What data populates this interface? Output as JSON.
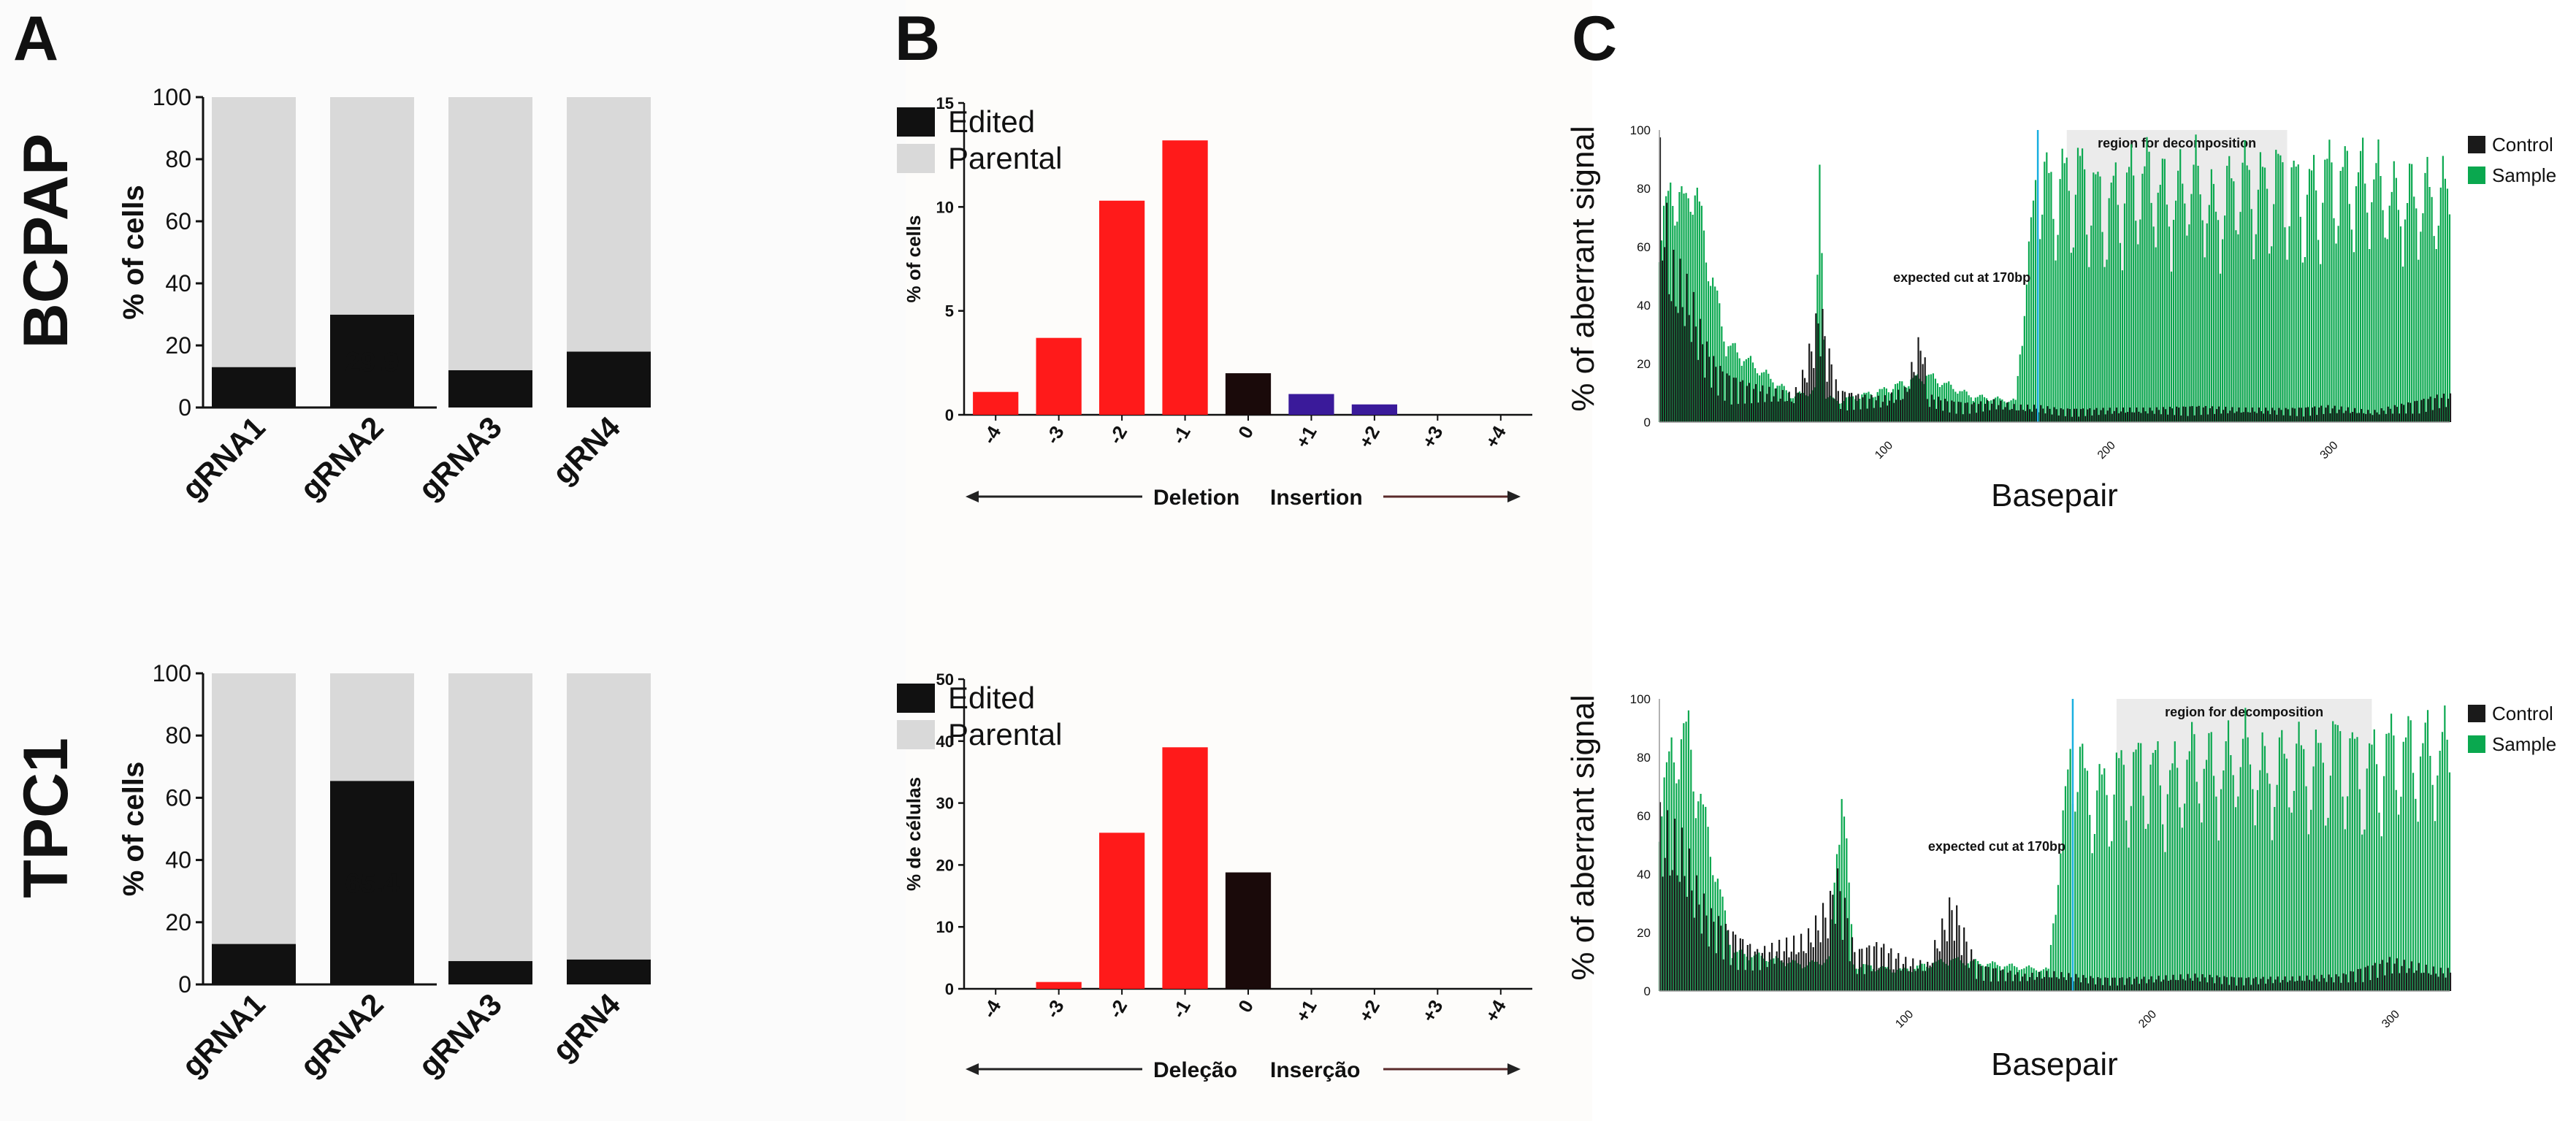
{
  "figure": {
    "panel_letters": [
      "A",
      "B",
      "C"
    ],
    "cell_lines": [
      "BCPAP",
      "TPC1"
    ]
  },
  "colors": {
    "edited": "#111111",
    "parental": "#d9d9d9",
    "deletion": "#ff1a1a",
    "zero": "#1a0a0a",
    "insertion": "#3a1a9a",
    "control": "#1a1a1a",
    "sample": "#0aa84f",
    "cut_line": "#1ab0e0",
    "region": "#ebebeb"
  },
  "chart_data": [
    {
      "id": "A_BCPAP",
      "type": "bar",
      "stacked": true,
      "ylabel": "% of cells",
      "ylim": [
        0,
        100
      ],
      "yticks": [
        0,
        20,
        40,
        60,
        80,
        100
      ],
      "categories": [
        "gRNA1",
        "gRNA2",
        "gRNA3",
        "gRN4"
      ],
      "series": [
        {
          "name": "Edited",
          "values": [
            13,
            29.9,
            12,
            18
          ]
        },
        {
          "name": "Parental",
          "values": [
            87,
            70.1,
            88,
            82
          ]
        }
      ],
      "data_labels": [
        {
          "category": "gRNA2",
          "text": "29.9"
        }
      ],
      "legend": [
        "Edited",
        "Parental"
      ],
      "legend_position": "right"
    },
    {
      "id": "A_TPC1",
      "type": "bar",
      "stacked": true,
      "ylabel": "% of cells",
      "ylim": [
        0,
        100
      ],
      "yticks": [
        0,
        20,
        40,
        60,
        80,
        100
      ],
      "categories": [
        "gRNA1",
        "gRNA2",
        "gRNA3",
        "gRN4"
      ],
      "series": [
        {
          "name": "Edited",
          "values": [
            13,
            65.4,
            7.5,
            8
          ]
        },
        {
          "name": "Parental",
          "values": [
            87,
            34.6,
            92.5,
            92
          ]
        }
      ],
      "data_labels": [
        {
          "category": "gRNA2",
          "text": "65.4"
        }
      ],
      "legend": [
        "Edited",
        "Parental"
      ],
      "legend_position": "right"
    },
    {
      "id": "B_BCPAP",
      "type": "bar",
      "ylabel": "% of cells",
      "ylim": [
        0,
        15
      ],
      "yticks": [
        0,
        5,
        10,
        15
      ],
      "categories": [
        "-4",
        "-3",
        "-2",
        "-1",
        "0",
        "+1",
        "+2",
        "+3",
        "+4"
      ],
      "values": [
        1.1,
        3.7,
        10.3,
        13.2,
        2.0,
        1.0,
        0.5,
        0,
        0
      ],
      "annotation": {
        "left": "Deletion",
        "right": "Insertion"
      }
    },
    {
      "id": "B_TPC1",
      "type": "bar",
      "ylabel": "% de células",
      "ylim": [
        0,
        50
      ],
      "yticks": [
        0,
        10,
        20,
        30,
        40,
        50
      ],
      "categories": [
        "-4",
        "-3",
        "-2",
        "-1",
        "0",
        "+1",
        "+2",
        "+3",
        "+4"
      ],
      "values": [
        0,
        1.1,
        25.2,
        39.0,
        18.8,
        0,
        0,
        0,
        0
      ],
      "annotation": {
        "left": "Deleção",
        "right": "Inserção"
      }
    },
    {
      "id": "C_BCPAP",
      "type": "bar",
      "xlabel": "Basepair",
      "ylabel": "% of aberrant signal",
      "xlim": [
        0,
        355
      ],
      "ylim": [
        0,
        100
      ],
      "yticks": [
        0,
        20,
        40,
        60,
        80,
        100
      ],
      "xticks": [
        100,
        200,
        300
      ],
      "cut_site": 170,
      "cut_label": "expected cut at 170bp",
      "region_label": "region for decomposition",
      "region": [
        183,
        282
      ],
      "legend": [
        "Control",
        "Sample"
      ],
      "legend_position": "right",
      "series": [
        {
          "name": "Control",
          "x": [
            0,
            5,
            10,
            15,
            20,
            25,
            30,
            40,
            50,
            60,
            65,
            70,
            72,
            75,
            80,
            90,
            100,
            110,
            118,
            120,
            130,
            140,
            150,
            160,
            170,
            180,
            200,
            220,
            240,
            260,
            280,
            300,
            320,
            340,
            350
          ],
          "y": [
            98,
            60,
            55,
            45,
            30,
            22,
            18,
            14,
            12,
            10,
            20,
            38,
            45,
            30,
            12,
            10,
            9,
            12,
            35,
            10,
            8,
            7,
            8,
            6,
            6,
            5,
            5,
            5,
            6,
            5,
            5,
            6,
            4,
            8,
            10
          ]
        },
        {
          "name": "Sample",
          "x": [
            0,
            5,
            8,
            12,
            15,
            20,
            30,
            60,
            70,
            72,
            75,
            80,
            100,
            120,
            140,
            160,
            170,
            172,
            175,
            180,
            190,
            200,
            210,
            220,
            230,
            240,
            250,
            260,
            270,
            280,
            290,
            300,
            310,
            320,
            330,
            340
          ],
          "y": [
            75,
            85,
            90,
            80,
            96,
            70,
            30,
            10,
            12,
            95,
            10,
            8,
            12,
            18,
            10,
            8,
            100,
            98,
            95,
            97,
            100,
            88,
            96,
            100,
            90,
            100,
            85,
            100,
            95,
            100,
            92,
            100,
            98,
            100,
            90,
            92
          ]
        }
      ]
    },
    {
      "id": "C_TPC1",
      "type": "bar",
      "xlabel": "Basepair",
      "ylabel": "% of aberrant signal",
      "xlim": [
        0,
        325
      ],
      "ylim": [
        0,
        100
      ],
      "yticks": [
        0,
        20,
        40,
        60,
        80,
        100
      ],
      "xticks": [
        100,
        200,
        300
      ],
      "cut_site": 170,
      "cut_label": "expected cut at 170bp",
      "region_label": "region for decomposition",
      "region": [
        188,
        293
      ],
      "legend": [
        "Control",
        "Sample"
      ],
      "legend_position": "right",
      "series": [
        {
          "name": "Control",
          "x": [
            0,
            5,
            10,
            15,
            20,
            30,
            40,
            50,
            60,
            70,
            72,
            75,
            80,
            90,
            100,
            110,
            120,
            130,
            140,
            150,
            160,
            170,
            180,
            200,
            220,
            240,
            260,
            280,
            300,
            320
          ],
          "y": [
            65,
            60,
            55,
            40,
            30,
            22,
            15,
            18,
            20,
            35,
            46,
            38,
            15,
            18,
            12,
            10,
            35,
            10,
            8,
            6,
            7,
            6,
            5,
            5,
            6,
            5,
            5,
            6,
            12,
            8
          ]
        },
        {
          "name": "Sample",
          "x": [
            0,
            5,
            8,
            12,
            15,
            20,
            30,
            60,
            70,
            75,
            80,
            100,
            120,
            140,
            160,
            170,
            175,
            180,
            190,
            200,
            210,
            220,
            230,
            240,
            250,
            260,
            270,
            280,
            290,
            300
          ],
          "y": [
            70,
            90,
            95,
            98,
            80,
            60,
            15,
            10,
            12,
            82,
            10,
            8,
            12,
            10,
            8,
            100,
            85,
            80,
            88,
            92,
            85,
            95,
            90,
            98,
            88,
            95,
            92,
            100,
            90,
            98
          ]
        }
      ]
    }
  ]
}
